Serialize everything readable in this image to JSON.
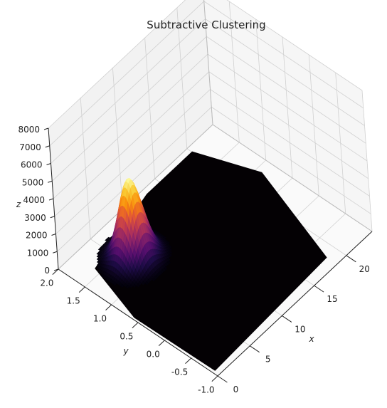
{
  "chart_data": {
    "type": "surface3d",
    "title": "Subtractive Clustering",
    "xlabel": "x",
    "ylabel": "y",
    "zlabel": "z",
    "colormap": "inferno",
    "grid": true,
    "x_ticks": [
      "0",
      "5",
      "10",
      "15",
      "20"
    ],
    "y_ticks": [
      "2.0",
      "1.5",
      "1.0",
      "0.5",
      "0.0",
      "-0.5",
      "-1.0"
    ],
    "z_ticks": [
      "0",
      "1000",
      "2000",
      "3000",
      "4000",
      "5000",
      "6000",
      "7000",
      "8000"
    ],
    "xlim": [
      0,
      24
    ],
    "ylim": [
      -1.0,
      2.0
    ],
    "zlim": [
      0,
      8000
    ],
    "peak": {
      "x": 6,
      "y": 1.3,
      "z": 4500
    },
    "base_value": 0,
    "pane_color": "#f2f2f2",
    "grid_color": "#d0d0d0"
  }
}
